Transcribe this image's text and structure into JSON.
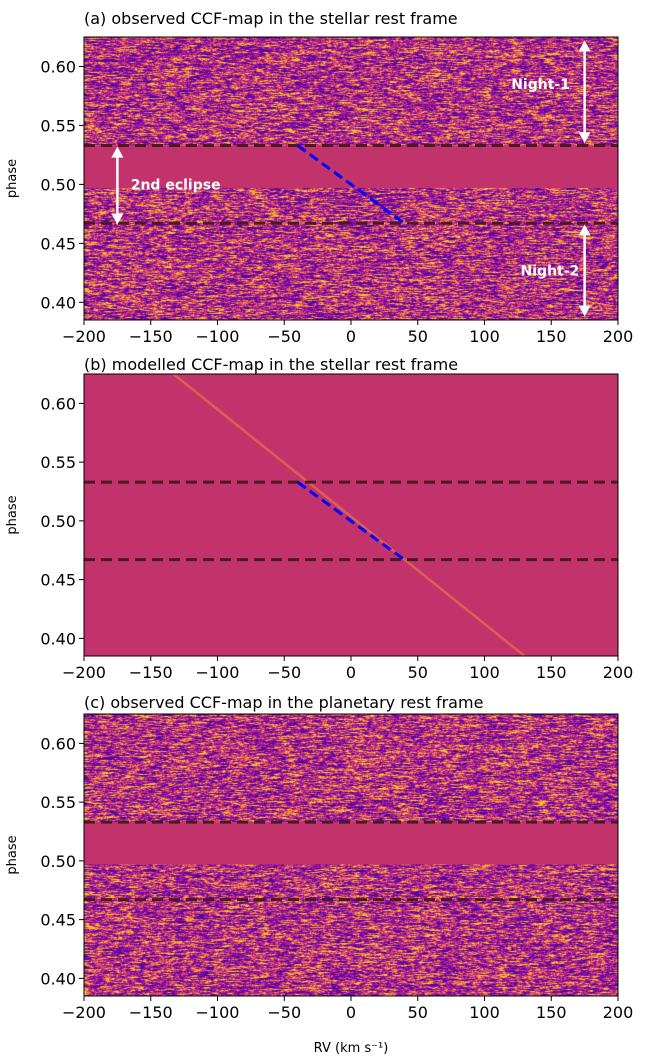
{
  "chart_data": [
    {
      "type": "heatmap",
      "title": "(a) observed CCF-map in the stellar rest frame",
      "xlabel": "",
      "ylabel": "phase",
      "xlim": [
        -200,
        200
      ],
      "ylim": [
        0.385,
        0.625
      ],
      "xticks": [
        -200,
        -150,
        -100,
        -50,
        0,
        50,
        100,
        150,
        200
      ],
      "xtick_labels": [
        "−200",
        "−150",
        "−100",
        "−50",
        "0",
        "50",
        "100",
        "150",
        "200"
      ],
      "yticks": [
        0.4,
        0.45,
        0.5,
        0.55,
        0.6
      ],
      "ytick_labels": [
        "0.40",
        "0.45",
        "0.50",
        "0.55",
        "0.60"
      ],
      "colormap": "plasma",
      "eclipse_fill": "#c2336b",
      "map_content": "noise",
      "eclipse_band": [
        0.497,
        0.533
      ],
      "dashed_lines": [
        0.467,
        0.533
      ],
      "trail": {
        "x": [
          -40,
          40
        ],
        "y": [
          0.533,
          0.467
        ],
        "color": "#0000ff"
      },
      "annotations": [
        {
          "text": "Night-1",
          "arrow_x": 175,
          "arrow_y": [
            0.535,
            0.622
          ],
          "label_x": 120,
          "label_y": 0.585
        },
        {
          "text": "2nd eclipse",
          "arrow_x": -175,
          "arrow_y": [
            0.466,
            0.532
          ],
          "label_x": -165,
          "label_y": 0.5
        },
        {
          "text": "Night-2",
          "arrow_x": 175,
          "arrow_y": [
            0.388,
            0.466
          ],
          "label_x": 127,
          "label_y": 0.427
        }
      ]
    },
    {
      "type": "heatmap",
      "title": "(b) modelled CCF-map in the stellar rest frame",
      "xlabel": "",
      "ylabel": "phase",
      "xlim": [
        -200,
        200
      ],
      "ylim": [
        0.385,
        0.625
      ],
      "xticks": [
        -200,
        -150,
        -100,
        -50,
        0,
        50,
        100,
        150,
        200
      ],
      "xtick_labels": [
        "−200",
        "−150",
        "−100",
        "−50",
        "0",
        "50",
        "100",
        "150",
        "200"
      ],
      "yticks": [
        0.4,
        0.45,
        0.5,
        0.55,
        0.6
      ],
      "ytick_labels": [
        "0.40",
        "0.45",
        "0.50",
        "0.55",
        "0.60"
      ],
      "colormap": "plasma",
      "eclipse_fill": "#c2336b",
      "map_content": "model",
      "model_trail": {
        "x": [
          -133,
          130
        ],
        "y": [
          0.625,
          0.385
        ],
        "color": "#e0684e"
      },
      "dashed_lines": [
        0.467,
        0.533
      ],
      "trail": {
        "x": [
          -40,
          40
        ],
        "y": [
          0.533,
          0.467
        ],
        "color": "#0000ff"
      },
      "annotations": []
    },
    {
      "type": "heatmap",
      "title": "(c) observed CCF-map in the planetary rest frame",
      "xlabel": "RV (km s⁻¹)",
      "ylabel": "phase",
      "xlim": [
        -200,
        200
      ],
      "ylim": [
        0.385,
        0.625
      ],
      "xticks": [
        -200,
        -150,
        -100,
        -50,
        0,
        50,
        100,
        150,
        200
      ],
      "xtick_labels": [
        "−200",
        "−150",
        "−100",
        "−50",
        "0",
        "50",
        "100",
        "150",
        "200"
      ],
      "yticks": [
        0.4,
        0.45,
        0.5,
        0.55,
        0.6
      ],
      "ytick_labels": [
        "0.40",
        "0.45",
        "0.50",
        "0.55",
        "0.60"
      ],
      "colormap": "plasma",
      "eclipse_fill": "#c2336b",
      "map_content": "noise",
      "eclipse_band": [
        0.497,
        0.533
      ],
      "dashed_lines": [
        0.467,
        0.533
      ],
      "annotations": []
    }
  ]
}
